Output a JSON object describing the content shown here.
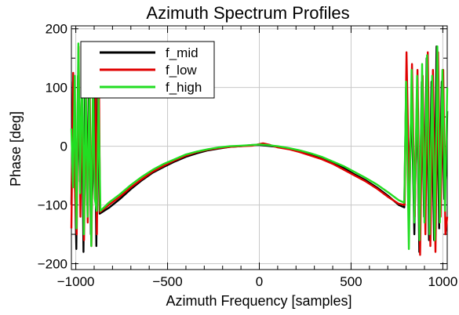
{
  "chart_data": {
    "type": "line",
    "title": "Azimuth Spectrum Profiles",
    "xlabel": "Azimuth Frequency [samples]",
    "ylabel": "Phase [deg]",
    "xlim": [
      -1024,
      1024
    ],
    "ylim": [
      -210,
      205
    ],
    "xticks": [
      -1000,
      -500,
      0,
      500,
      1000
    ],
    "yticks": [
      -200,
      -100,
      0,
      100,
      200
    ],
    "xtick_labels": [
      "−1000",
      "−500",
      "0",
      "500",
      "1000"
    ],
    "ytick_labels": [
      "−200",
      "−100",
      "0",
      "100",
      "200"
    ],
    "grid": true,
    "legend_position": "top-left",
    "series": [
      {
        "name": "f_mid",
        "color": "#000000",
        "points": [
          [
            -1024,
            -100
          ],
          [
            -1015,
            110
          ],
          [
            -1006,
            -40
          ],
          [
            -997,
            -175
          ],
          [
            -988,
            120
          ],
          [
            -978,
            -60
          ],
          [
            -968,
            110
          ],
          [
            -958,
            -180
          ],
          [
            -948,
            150
          ],
          [
            -938,
            -100
          ],
          [
            -928,
            130
          ],
          [
            -918,
            -150
          ],
          [
            -908,
            -60
          ],
          [
            -898,
            120
          ],
          [
            -888,
            -170
          ],
          [
            -878,
            175
          ],
          [
            -870,
            -115
          ],
          [
            -820,
            -105
          ],
          [
            -760,
            -90
          ],
          [
            -700,
            -73
          ],
          [
            -640,
            -58
          ],
          [
            -580,
            -45
          ],
          [
            -520,
            -35
          ],
          [
            -460,
            -26
          ],
          [
            -400,
            -18
          ],
          [
            -340,
            -12
          ],
          [
            -280,
            -7
          ],
          [
            -220,
            -4
          ],
          [
            -160,
            -1
          ],
          [
            -100,
            0
          ],
          [
            -40,
            2
          ],
          [
            0,
            2
          ],
          [
            40,
            1
          ],
          [
            100,
            -1
          ],
          [
            160,
            -4
          ],
          [
            220,
            -8
          ],
          [
            280,
            -14
          ],
          [
            340,
            -20
          ],
          [
            400,
            -28
          ],
          [
            460,
            -37
          ],
          [
            520,
            -48
          ],
          [
            580,
            -58
          ],
          [
            640,
            -70
          ],
          [
            700,
            -84
          ],
          [
            760,
            -100
          ],
          [
            790,
            -104
          ],
          [
            800,
            100
          ],
          [
            815,
            -80
          ],
          [
            830,
            80
          ],
          [
            845,
            -150
          ],
          [
            860,
            95
          ],
          [
            872,
            -180
          ],
          [
            885,
            110
          ],
          [
            898,
            -120
          ],
          [
            912,
            150
          ],
          [
            925,
            -160
          ],
          [
            938,
            110
          ],
          [
            952,
            -160
          ],
          [
            966,
            170
          ],
          [
            980,
            -140
          ],
          [
            994,
            110
          ],
          [
            1008,
            -90
          ],
          [
            1018,
            -40
          ],
          [
            1024,
            60
          ]
        ]
      },
      {
        "name": "f_low",
        "color": "#e00000",
        "points": [
          [
            -1024,
            -140
          ],
          [
            -1014,
            125
          ],
          [
            -1005,
            -70
          ],
          [
            -995,
            -150
          ],
          [
            -985,
            170
          ],
          [
            -975,
            -120
          ],
          [
            -965,
            100
          ],
          [
            -955,
            -160
          ],
          [
            -945,
            90
          ],
          [
            -935,
            -130
          ],
          [
            -925,
            120
          ],
          [
            -915,
            -170
          ],
          [
            -905,
            100
          ],
          [
            -895,
            175
          ],
          [
            -885,
            -150
          ],
          [
            -875,
            165
          ],
          [
            -868,
            -112
          ],
          [
            -820,
            -100
          ],
          [
            -760,
            -86
          ],
          [
            -700,
            -70
          ],
          [
            -640,
            -56
          ],
          [
            -580,
            -43
          ],
          [
            -520,
            -33
          ],
          [
            -460,
            -24
          ],
          [
            -400,
            -16
          ],
          [
            -340,
            -10
          ],
          [
            -280,
            -6
          ],
          [
            -220,
            -3
          ],
          [
            -160,
            -1
          ],
          [
            -100,
            0
          ],
          [
            -40,
            1
          ],
          [
            20,
            5
          ],
          [
            60,
            2
          ],
          [
            100,
            -2
          ],
          [
            160,
            -5
          ],
          [
            220,
            -10
          ],
          [
            280,
            -16
          ],
          [
            340,
            -22
          ],
          [
            400,
            -30
          ],
          [
            460,
            -40
          ],
          [
            520,
            -50
          ],
          [
            580,
            -60
          ],
          [
            640,
            -72
          ],
          [
            700,
            -86
          ],
          [
            760,
            -98
          ],
          [
            792,
            -100
          ],
          [
            802,
            160
          ],
          [
            818,
            -100
          ],
          [
            832,
            140
          ],
          [
            847,
            -120
          ],
          [
            862,
            130
          ],
          [
            876,
            -185
          ],
          [
            890,
            120
          ],
          [
            905,
            -150
          ],
          [
            918,
            160
          ],
          [
            932,
            -170
          ],
          [
            946,
            130
          ],
          [
            960,
            -180
          ],
          [
            974,
            160
          ],
          [
            988,
            -120
          ],
          [
            1002,
            130
          ],
          [
            1014,
            -150
          ],
          [
            1024,
            -120
          ]
        ]
      },
      {
        "name": "f_high",
        "color": "#22dd22",
        "points": [
          [
            -1024,
            30
          ],
          [
            -1015,
            -70
          ],
          [
            -1006,
            120
          ],
          [
            -996,
            -140
          ],
          [
            -986,
            175
          ],
          [
            -976,
            -80
          ],
          [
            -966,
            175
          ],
          [
            -956,
            -150
          ],
          [
            -946,
            110
          ],
          [
            -936,
            -120
          ],
          [
            -926,
            100
          ],
          [
            -916,
            -170
          ],
          [
            -906,
            120
          ],
          [
            -896,
            -90
          ],
          [
            -886,
            -110
          ],
          [
            -876,
            80
          ],
          [
            -866,
            -110
          ],
          [
            -820,
            -96
          ],
          [
            -760,
            -82
          ],
          [
            -700,
            -66
          ],
          [
            -640,
            -52
          ],
          [
            -580,
            -40
          ],
          [
            -520,
            -30
          ],
          [
            -460,
            -22
          ],
          [
            -400,
            -14
          ],
          [
            -340,
            -9
          ],
          [
            -280,
            -5
          ],
          [
            -220,
            -2
          ],
          [
            -160,
            0
          ],
          [
            -100,
            1
          ],
          [
            -40,
            2
          ],
          [
            0,
            3
          ],
          [
            40,
            2
          ],
          [
            100,
            0
          ],
          [
            160,
            -3
          ],
          [
            220,
            -7
          ],
          [
            280,
            -12
          ],
          [
            340,
            -18
          ],
          [
            400,
            -26
          ],
          [
            460,
            -34
          ],
          [
            520,
            -44
          ],
          [
            580,
            -54
          ],
          [
            640,
            -65
          ],
          [
            700,
            -78
          ],
          [
            760,
            -92
          ],
          [
            790,
            -96
          ],
          [
            800,
            110
          ],
          [
            815,
            -175
          ],
          [
            830,
            130
          ],
          [
            845,
            -130
          ],
          [
            860,
            120
          ],
          [
            873,
            -160
          ],
          [
            887,
            140
          ],
          [
            900,
            -130
          ],
          [
            914,
            155
          ],
          [
            928,
            -150
          ],
          [
            942,
            120
          ],
          [
            956,
            -160
          ],
          [
            970,
            170
          ],
          [
            984,
            -130
          ],
          [
            998,
            130
          ],
          [
            1012,
            -110
          ],
          [
            1024,
            100
          ]
        ]
      }
    ]
  }
}
